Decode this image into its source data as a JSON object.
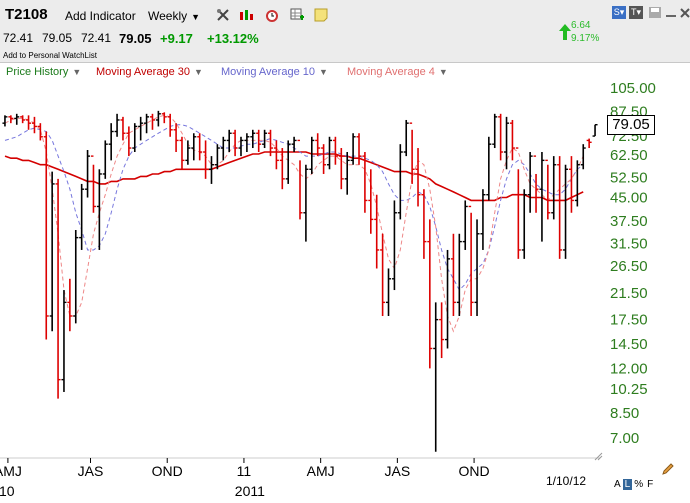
{
  "toolbar": {
    "symbol": "T2108",
    "add_indicator": "Add Indicator",
    "period": "Weekly"
  },
  "quote": {
    "open": "72.41",
    "high": "79.05",
    "low": "72.41",
    "last": "79.05",
    "change": "+9.17",
    "change_pct": "+13.12%",
    "watchlist": "Add to Personal WatchList",
    "mini_val": "6.64",
    "mini_pct": "9.17%"
  },
  "legend": {
    "price_history": "Price History",
    "ma30": "Moving Average 30",
    "ma10": "Moving Average 10",
    "ma4": "Moving Average 4"
  },
  "colors": {
    "up": "#000000",
    "down": "#dd0000",
    "ma30": "#d40000",
    "ma10": "#7777dd",
    "ma4": "#ee8888",
    "axis_text": "#2e7d1f"
  },
  "footer": {
    "date": "1/10/12",
    "mode_a": "A",
    "mode_l": "L",
    "mode_pct": "%",
    "mode_f": "F"
  },
  "chart_data": {
    "type": "ohlc",
    "y_scale": "log",
    "ylim": [
      6,
      110
    ],
    "yticks": [
      "105.00",
      "87.50",
      "72.50",
      "62.50",
      "52.50",
      "45.00",
      "37.50",
      "31.50",
      "26.50",
      "21.50",
      "17.50",
      "14.50",
      "12.00",
      "10.25",
      "8.50",
      "7.00"
    ],
    "xticks": [
      {
        "label": "AMJ",
        "x": 0.5
      },
      {
        "label": "JAS",
        "x": 14.5
      },
      {
        "label": "OND",
        "x": 27.5
      },
      {
        "label": "11",
        "x": 40.5
      },
      {
        "label": "AMJ",
        "x": 53.5
      },
      {
        "label": "JAS",
        "x": 66.5
      },
      {
        "label": "OND",
        "x": 79.5
      }
    ],
    "year_labels": [
      {
        "label": "10",
        "x": 0.3
      },
      {
        "label": "2011",
        "x": 41.5
      }
    ],
    "last_value": "79.05",
    "bars": [
      [
        80,
        85,
        78,
        84
      ],
      [
        84,
        85,
        80,
        83
      ],
      [
        83,
        86,
        79,
        84
      ],
      [
        84,
        85,
        80,
        82
      ],
      [
        82,
        85,
        76,
        80
      ],
      [
        80,
        84,
        74,
        78
      ],
      [
        78,
        80,
        70,
        72
      ],
      [
        72,
        75,
        15,
        18
      ],
      [
        18,
        55,
        16,
        50
      ],
      [
        50,
        52,
        9.5,
        11
      ],
      [
        11,
        22,
        10,
        20
      ],
      [
        20,
        24,
        16,
        18
      ],
      [
        18,
        35,
        17,
        33
      ],
      [
        33,
        50,
        30,
        48
      ],
      [
        48,
        65,
        45,
        62
      ],
      [
        62,
        58,
        40,
        42
      ],
      [
        42,
        56,
        30,
        54
      ],
      [
        54,
        70,
        52,
        68
      ],
      [
        68,
        80,
        60,
        75
      ],
      [
        75,
        86,
        72,
        82
      ],
      [
        82,
        84,
        70,
        74
      ],
      [
        74,
        78,
        62,
        66
      ],
      [
        66,
        80,
        64,
        78
      ],
      [
        78,
        84,
        70,
        80
      ],
      [
        80,
        86,
        74,
        84
      ],
      [
        84,
        86,
        76,
        82
      ],
      [
        82,
        88,
        78,
        86
      ],
      [
        86,
        87,
        80,
        84
      ],
      [
        84,
        86,
        72,
        76
      ],
      [
        76,
        80,
        64,
        70
      ],
      [
        70,
        72,
        56,
        60
      ],
      [
        60,
        70,
        58,
        66
      ],
      [
        66,
        74,
        60,
        72
      ],
      [
        72,
        74,
        60,
        64
      ],
      [
        64,
        70,
        52,
        56
      ],
      [
        56,
        62,
        50,
        58
      ],
      [
        58,
        68,
        56,
        66
      ],
      [
        66,
        72,
        60,
        70
      ],
      [
        70,
        76,
        64,
        74
      ],
      [
        74,
        76,
        62,
        66
      ],
      [
        66,
        72,
        62,
        70
      ],
      [
        70,
        74,
        64,
        72
      ],
      [
        72,
        76,
        66,
        74
      ],
      [
        74,
        76,
        64,
        68
      ],
      [
        68,
        76,
        66,
        74
      ],
      [
        74,
        76,
        62,
        66
      ],
      [
        66,
        70,
        56,
        60
      ],
      [
        60,
        66,
        48,
        52
      ],
      [
        52,
        70,
        50,
        68
      ],
      [
        68,
        72,
        64,
        70
      ],
      [
        70,
        60,
        38,
        40
      ],
      [
        40,
        58,
        32,
        56
      ],
      [
        56,
        72,
        54,
        70
      ],
      [
        70,
        74,
        62,
        66
      ],
      [
        66,
        68,
        54,
        58
      ],
      [
        58,
        72,
        56,
        70
      ],
      [
        70,
        72,
        58,
        62
      ],
      [
        62,
        66,
        48,
        52
      ],
      [
        52,
        64,
        46,
        60
      ],
      [
        60,
        74,
        58,
        72
      ],
      [
        72,
        74,
        58,
        62
      ],
      [
        62,
        64,
        40,
        44
      ],
      [
        44,
        56,
        34,
        38
      ],
      [
        38,
        46,
        26,
        30
      ],
      [
        30,
        34,
        18,
        20
      ],
      [
        20,
        26,
        18,
        24
      ],
      [
        24,
        44,
        22,
        40
      ],
      [
        40,
        68,
        38,
        64
      ],
      [
        64,
        82,
        62,
        80
      ],
      [
        80,
        76,
        50,
        56
      ],
      [
        56,
        66,
        42,
        46
      ],
      [
        46,
        48,
        28,
        32
      ],
      [
        32,
        38,
        12,
        14
      ],
      [
        14,
        20,
        6.3,
        17.5
      ],
      [
        17.5,
        20,
        13,
        15
      ],
      [
        15,
        30,
        14,
        28
      ],
      [
        28,
        34,
        18,
        20
      ],
      [
        20,
        34,
        18,
        32
      ],
      [
        32,
        44,
        30,
        42
      ],
      [
        42,
        40,
        18,
        20
      ],
      [
        20,
        38,
        18,
        34
      ],
      [
        34,
        48,
        30,
        46
      ],
      [
        46,
        72,
        44,
        68
      ],
      [
        68,
        86,
        66,
        84
      ],
      [
        84,
        86,
        60,
        64
      ],
      [
        64,
        84,
        56,
        80
      ],
      [
        80,
        82,
        60,
        66
      ],
      [
        66,
        56,
        28,
        30
      ],
      [
        30,
        48,
        28,
        46
      ],
      [
        46,
        64,
        40,
        62
      ],
      [
        62,
        54,
        40,
        48
      ],
      [
        48,
        64,
        32,
        60
      ],
      [
        60,
        58,
        38,
        40
      ],
      [
        40,
        62,
        38,
        58
      ],
      [
        58,
        62,
        28,
        30
      ],
      [
        30,
        58,
        28,
        56
      ],
      [
        56,
        62,
        40,
        44
      ],
      [
        44,
        60,
        42,
        58
      ],
      [
        58,
        68,
        56,
        66
      ],
      [
        70,
        71,
        66,
        69
      ],
      [
        72.41,
        79.05,
        72.41,
        79.05
      ]
    ],
    "ma30": [
      62,
      61,
      61,
      60,
      60,
      59,
      58,
      58,
      57,
      56,
      55,
      54,
      53,
      52,
      51,
      51,
      50,
      50,
      51,
      51,
      52,
      52,
      52,
      53,
      53,
      54,
      54,
      55,
      55,
      56,
      56,
      56,
      56,
      56,
      56,
      56,
      57,
      58,
      59,
      60,
      61,
      62,
      63,
      63,
      64,
      64,
      64,
      64,
      64,
      64,
      64,
      64,
      63,
      63,
      63,
      63,
      63,
      62,
      62,
      61,
      61,
      60,
      59,
      58,
      57,
      56,
      55,
      55,
      55,
      54,
      54,
      53,
      52,
      50,
      49,
      48,
      47,
      46,
      45,
      44,
      44,
      44,
      44,
      44,
      45,
      45,
      46,
      46,
      46,
      45,
      45,
      45,
      44,
      44,
      44,
      44,
      45,
      46,
      47
    ],
    "ma10": [
      70,
      71,
      72,
      74,
      76,
      77,
      76,
      75,
      70,
      62,
      55,
      48,
      40,
      35,
      30,
      30,
      31,
      34,
      40,
      48,
      56,
      62,
      66,
      68,
      70,
      72,
      74,
      76,
      78,
      79,
      79,
      78,
      76,
      74,
      72,
      70,
      68,
      66,
      66,
      66,
      67,
      68,
      68,
      69,
      70,
      71,
      70,
      69,
      68,
      66,
      64,
      62,
      62,
      62,
      63,
      64,
      64,
      63,
      62,
      62,
      62,
      61,
      60,
      58,
      55,
      50,
      46,
      44,
      44,
      45,
      47,
      46,
      42,
      36,
      30,
      26,
      24,
      22,
      23,
      25,
      26,
      27,
      30,
      36,
      44,
      52,
      58,
      60,
      58,
      54,
      50,
      48,
      47,
      46,
      46,
      48,
      52,
      56,
      58
    ],
    "ma4": [
      80,
      82,
      83,
      83,
      82,
      80,
      76,
      64,
      48,
      34,
      22,
      18,
      18,
      20,
      26,
      34,
      40,
      46,
      54,
      62,
      68,
      74,
      76,
      78,
      80,
      82,
      84,
      85,
      84,
      80,
      74,
      68,
      65,
      64,
      62,
      58,
      58,
      60,
      64,
      68,
      70,
      70,
      70,
      70,
      70,
      69,
      66,
      62,
      60,
      58,
      54,
      52,
      54,
      58,
      60,
      62,
      62,
      60,
      58,
      58,
      58,
      56,
      50,
      42,
      34,
      28,
      26,
      30,
      40,
      52,
      60,
      58,
      48,
      36,
      24,
      18,
      16,
      18,
      22,
      24,
      24,
      26,
      30,
      40,
      52,
      60,
      66,
      64,
      56,
      50,
      48,
      46,
      44,
      46,
      48,
      50,
      52,
      56,
      62
    ]
  }
}
